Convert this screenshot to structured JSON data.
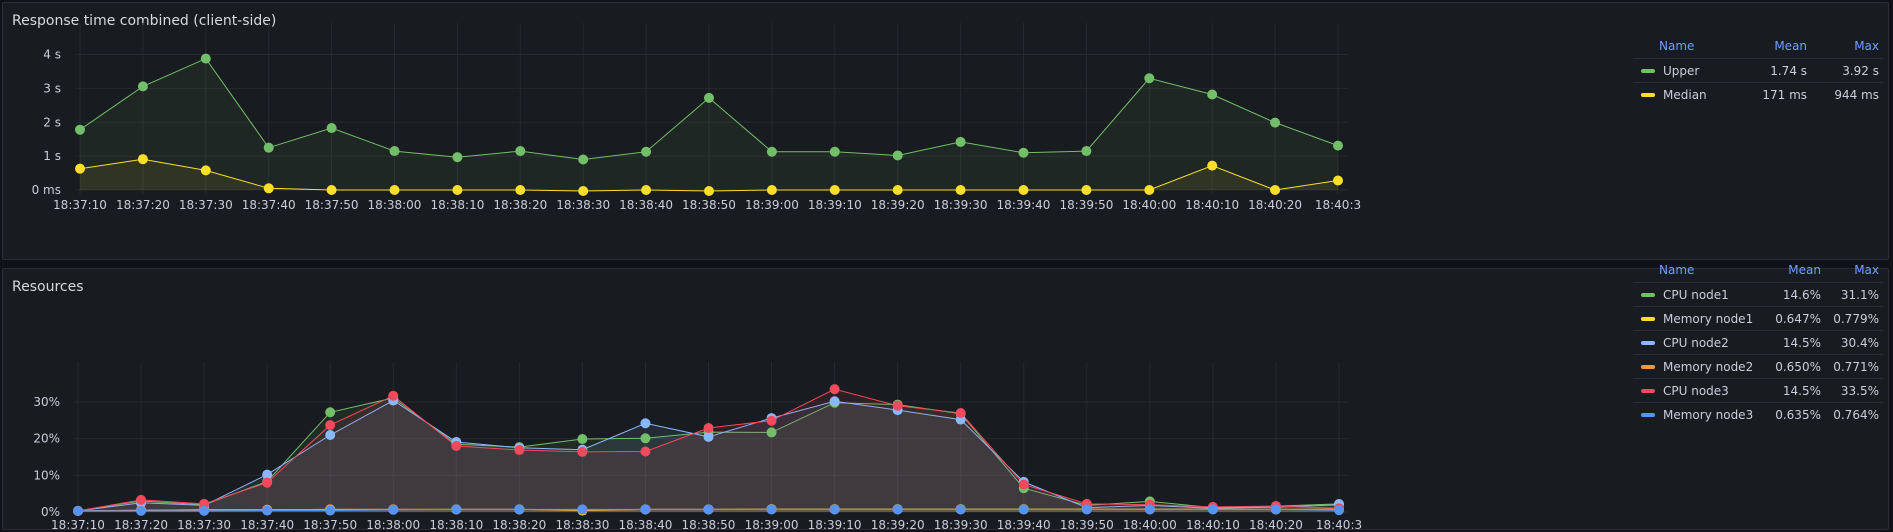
{
  "panels": [
    {
      "title": "Response time combined (client-side)",
      "legend": {
        "headers": [
          "Name",
          "Mean",
          "Max"
        ],
        "rows": [
          {
            "name": "Upper",
            "mean": "1.74 s",
            "max": "3.92 s",
            "color": "#73bf69"
          },
          {
            "name": "Median",
            "mean": "171 ms",
            "max": "944 ms",
            "color": "#fade2a"
          }
        ]
      }
    },
    {
      "title": "Resources",
      "legend": {
        "headers": [
          "Name",
          "Mean",
          "Max"
        ],
        "rows": [
          {
            "name": "CPU node1",
            "mean": "14.6%",
            "max": "31.1%",
            "color": "#73bf69"
          },
          {
            "name": "Memory node1",
            "mean": "0.647%",
            "max": "0.779%",
            "color": "#fade2a"
          },
          {
            "name": "CPU node2",
            "mean": "14.5%",
            "max": "30.4%",
            "color": "#8ab8ff"
          },
          {
            "name": "Memory node2",
            "mean": "0.650%",
            "max": "0.771%",
            "color": "#ff9830"
          },
          {
            "name": "CPU node3",
            "mean": "14.5%",
            "max": "33.5%",
            "color": "#f2495c"
          },
          {
            "name": "Memory node3",
            "mean": "0.635%",
            "max": "0.764%",
            "color": "#5794f2"
          }
        ]
      }
    }
  ],
  "chart_data": [
    {
      "type": "line",
      "title": "Response time combined (client-side)",
      "x": [
        "18:37:10",
        "18:37:20",
        "18:37:30",
        "18:37:40",
        "18:37:50",
        "18:38:00",
        "18:38:10",
        "18:38:20",
        "18:38:30",
        "18:38:40",
        "18:38:50",
        "18:39:00",
        "18:39:10",
        "18:39:20",
        "18:39:30",
        "18:39:40",
        "18:39:50",
        "18:40:00",
        "18:40:10",
        "18:40:20",
        "18:40:3"
      ],
      "yticks": [
        "0 ms",
        "1 s",
        "2 s",
        "3 s",
        "4 s"
      ],
      "ylim": [
        0,
        4.4
      ],
      "grid": true,
      "legend_placement": "right",
      "series": [
        {
          "name": "Upper",
          "color": "#73bf69",
          "values": [
            1.78,
            3.06,
            3.88,
            1.25,
            1.83,
            1.15,
            0.97,
            1.15,
            0.9,
            1.13,
            2.72,
            1.13,
            1.13,
            1.02,
            1.42,
            1.1,
            1.15,
            3.3,
            2.82,
            1.99,
            1.31
          ]
        },
        {
          "name": "Median",
          "color": "#fade2a",
          "values": [
            0.63,
            0.91,
            0.58,
            0.05,
            0.0,
            0.0,
            0.0,
            0.0,
            -0.03,
            0.0,
            -0.03,
            0.0,
            0.0,
            0.0,
            0.0,
            0.0,
            0.0,
            0.0,
            0.72,
            0.0,
            0.28
          ]
        }
      ]
    },
    {
      "type": "line",
      "title": "Resources",
      "x": [
        "18:37:10",
        "18:37:20",
        "18:37:30",
        "18:37:40",
        "18:37:50",
        "18:38:00",
        "18:38:10",
        "18:38:20",
        "18:38:30",
        "18:38:40",
        "18:38:50",
        "18:39:00",
        "18:39:10",
        "18:39:20",
        "18:39:30",
        "18:39:40",
        "18:39:50",
        "18:40:00",
        "18:40:10",
        "18:40:20",
        "18:40:3"
      ],
      "yticks": [
        "0%",
        "10%",
        "20%",
        "30%"
      ],
      "ylim": [
        0,
        36
      ],
      "grid": true,
      "legend_placement": "right",
      "series": [
        {
          "name": "CPU node1",
          "color": "#73bf69",
          "values": [
            0.3,
            3.0,
            2.0,
            8.3,
            27.2,
            31.1,
            18.5,
            17.7,
            19.9,
            20.1,
            21.8,
            21.7,
            29.8,
            29.3,
            26.8,
            6.5,
            1.8,
            2.9,
            1.2,
            1.6,
            2.2
          ]
        },
        {
          "name": "Memory node1",
          "color": "#fade2a",
          "values": [
            0.3,
            0.5,
            0.6,
            0.6,
            0.7,
            0.7,
            0.7,
            0.7,
            0.4,
            0.7,
            0.7,
            0.8,
            0.8,
            0.8,
            0.8,
            0.8,
            0.8,
            0.8,
            0.8,
            0.7,
            0.8
          ]
        },
        {
          "name": "CPU node2",
          "color": "#8ab8ff",
          "values": [
            0.3,
            2.5,
            1.8,
            10.2,
            21.0,
            30.4,
            19.1,
            17.5,
            17.0,
            24.2,
            20.5,
            25.6,
            30.2,
            27.8,
            25.2,
            8.2,
            1.2,
            1.8,
            1.0,
            1.3,
            2.0
          ]
        },
        {
          "name": "Memory node2",
          "color": "#ff9830",
          "values": [
            0.3,
            0.5,
            0.6,
            0.6,
            0.7,
            0.7,
            0.7,
            0.7,
            0.6,
            0.7,
            0.7,
            0.8,
            0.7,
            0.7,
            0.7,
            0.7,
            0.8,
            0.7,
            0.8,
            0.7,
            0.8
          ]
        },
        {
          "name": "CPU node3",
          "color": "#f2495c",
          "values": [
            0.3,
            3.3,
            2.2,
            8.0,
            23.7,
            31.7,
            18.0,
            16.9,
            16.4,
            16.5,
            22.9,
            24.9,
            33.5,
            29.0,
            27.0,
            7.5,
            2.2,
            2.0,
            1.4,
            1.6,
            1.0
          ]
        },
        {
          "name": "Memory node3",
          "color": "#5794f2",
          "values": [
            0.3,
            0.3,
            0.3,
            0.4,
            0.4,
            0.6,
            0.7,
            0.7,
            0.7,
            0.7,
            0.7,
            0.7,
            0.7,
            0.7,
            0.7,
            0.7,
            0.7,
            0.7,
            0.7,
            0.7,
            0.5
          ]
        }
      ]
    }
  ]
}
